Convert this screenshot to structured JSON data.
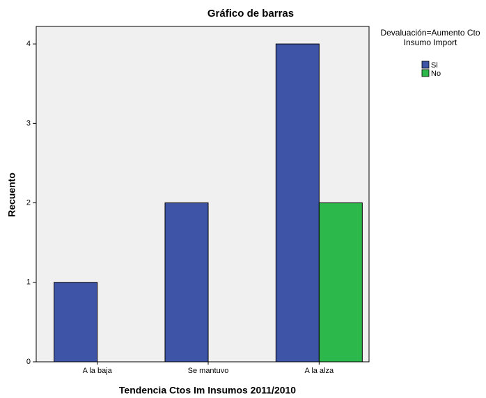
{
  "chart_data": {
    "type": "bar",
    "title": "Gráfico de barras",
    "x_label": "Tendencia Ctos Im Insumos 2011/2010",
    "y_label": "Recuento",
    "legend_title": "Devaluación=Aumento Cto Insumo Import",
    "categories": [
      "A la baja",
      "Se mantuvo",
      "A la alza"
    ],
    "series": [
      {
        "name": "Si",
        "color": "#3e55a7",
        "values": [
          1,
          2,
          4
        ]
      },
      {
        "name": "No",
        "color": "#2db84b",
        "values": [
          0,
          0,
          2
        ]
      }
    ],
    "ylim": [
      0,
      4.22
    ],
    "yticks": [
      0,
      1,
      2,
      3,
      4
    ],
    "legend": "right"
  }
}
